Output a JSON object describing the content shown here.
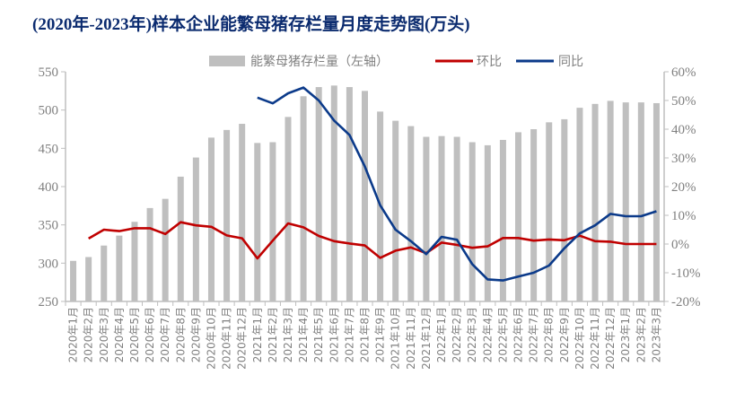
{
  "chart_data": {
    "type": "bar+line",
    "title": "(2020年-2023年)样本企业能繁母猪存栏量月度走势图(万头)",
    "categories": [
      "2020年1月",
      "2020年2月",
      "2020年3月",
      "2020年4月",
      "2020年5月",
      "2020年6月",
      "2020年7月",
      "2020年8月",
      "2020年9月",
      "2020年10月",
      "2020年11月",
      "2020年12月",
      "2021年1月",
      "2021年2月",
      "2021年3月",
      "2021年4月",
      "2021年5月",
      "2021年6月",
      "2021年7月",
      "2021年8月",
      "2021年9月",
      "2021年10月",
      "2021年11月",
      "2021年12月",
      "2022年1月",
      "2022年2月",
      "2022年3月",
      "2022年4月",
      "2022年5月",
      "2022年6月",
      "2022年7月",
      "2022年8月",
      "2022年9月",
      "2022年10月",
      "2022年11月",
      "2022年12月",
      "2023年1月",
      "2023年2月",
      "2023年3月"
    ],
    "series": [
      {
        "name": "能繁母猪存栏量（左轴）",
        "type": "bar",
        "axis": "left",
        "color": "#bfbfbf",
        "values": [
          303,
          308,
          323,
          336,
          354,
          372,
          384,
          413,
          438,
          464,
          474,
          482,
          457,
          458,
          491,
          518,
          530,
          532,
          530,
          525,
          498,
          486,
          479,
          465,
          466,
          465,
          458,
          454,
          461,
          471,
          475,
          484,
          488,
          503,
          508,
          512,
          510,
          510,
          509
        ]
      },
      {
        "name": "环比",
        "type": "line",
        "axis": "right",
        "color": "#c00000",
        "values": [
          null,
          1.9,
          5.0,
          4.5,
          5.5,
          5.5,
          3.5,
          7.6,
          6.5,
          6.0,
          3.0,
          2.0,
          -5.0,
          1.2,
          7.2,
          5.8,
          2.8,
          1.0,
          0.2,
          -0.5,
          -4.8,
          -2.3,
          -1.2,
          -3.2,
          0.5,
          -0.3,
          -1.3,
          -0.8,
          2.1,
          2.1,
          1.2,
          1.6,
          1.3,
          2.9,
          1.0,
          0.8,
          0.0,
          0.0,
          0.0
        ]
      },
      {
        "name": "同比",
        "type": "line",
        "axis": "right",
        "color": "#0b3a8a",
        "values": [
          null,
          null,
          null,
          null,
          null,
          null,
          null,
          null,
          null,
          null,
          null,
          null,
          51,
          49,
          52.5,
          54.5,
          50,
          43,
          38,
          27,
          13.5,
          5,
          1,
          -3.5,
          2.5,
          1.5,
          -7,
          -12.3,
          -12.7,
          -11.3,
          -10,
          -7.5,
          -1.5,
          3.7,
          6.5,
          10.5,
          9.7,
          9.7,
          11.4
        ]
      }
    ],
    "left_axis": {
      "min": 250,
      "max": 550,
      "ticks": [
        "250",
        "300",
        "350",
        "400",
        "450",
        "500",
        "550"
      ]
    },
    "right_axis": {
      "min": -20,
      "max": 60,
      "ticks": [
        "-20%",
        "-10%",
        "0%",
        "10%",
        "20%",
        "30%",
        "40%",
        "50%",
        "60%"
      ]
    },
    "legend_position": "top"
  }
}
